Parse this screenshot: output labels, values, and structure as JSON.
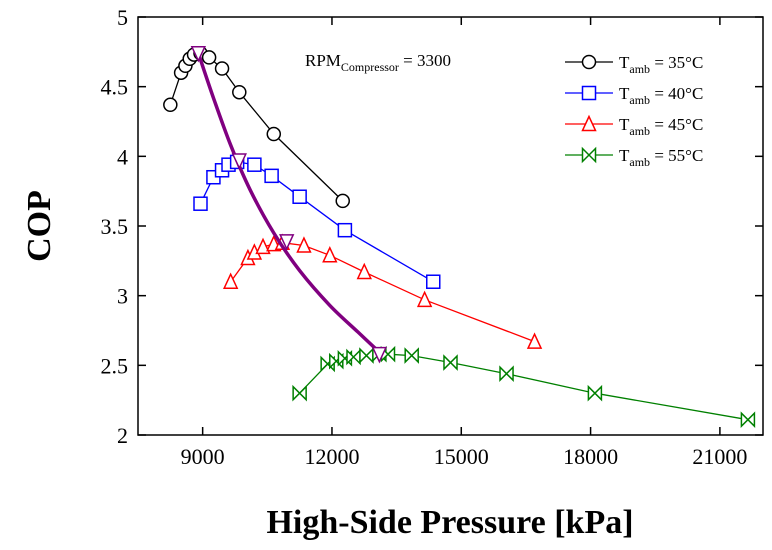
{
  "chart_data": {
    "type": "line",
    "title": "",
    "xlabel": "High-Side Pressure [kPa]",
    "ylabel": "COP",
    "xlim": [
      7500,
      22000
    ],
    "ylim": [
      2,
      5
    ],
    "xticks": [
      9000,
      12000,
      15000,
      18000,
      21000
    ],
    "yticks": [
      2,
      2.5,
      3,
      3.5,
      4,
      4.5,
      5
    ],
    "xtick_labels": [
      "9000",
      "12000",
      "15000",
      "18000",
      "21000"
    ],
    "ytick_labels": [
      "2",
      "2.5",
      "3",
      "3.5",
      "4",
      "4.5",
      "5"
    ],
    "annotation": {
      "base": "RPM",
      "subscript": "Compressor",
      "suffix": " = 3300"
    },
    "legend_placement": "top-right",
    "series": [
      {
        "name": "T_amb = 35°C",
        "label_base": "T",
        "label_sub": "amb",
        "label_suffix": " = 35°C",
        "color": "#000000",
        "marker": "circle",
        "x": [
          8250,
          8500,
          8600,
          8700,
          8800,
          8950,
          9150,
          9450,
          9850,
          10650,
          12250
        ],
        "y": [
          4.37,
          4.6,
          4.65,
          4.7,
          4.73,
          4.74,
          4.71,
          4.63,
          4.46,
          4.16,
          3.68
        ]
      },
      {
        "name": "T_amb = 40°C",
        "label_base": "T",
        "label_sub": "amb",
        "label_suffix": " = 40°C",
        "color": "#0000ff",
        "marker": "square",
        "x": [
          8950,
          9250,
          9450,
          9600,
          9800,
          10200,
          10600,
          11250,
          12300,
          14350
        ],
        "y": [
          3.66,
          3.85,
          3.9,
          3.94,
          3.96,
          3.94,
          3.86,
          3.71,
          3.47,
          3.1
        ]
      },
      {
        "name": "T_amb = 45°C",
        "label_base": "T",
        "label_sub": "amb",
        "label_suffix": " = 45°C",
        "color": "#ff0000",
        "marker": "triangle",
        "x": [
          9650,
          10050,
          10200,
          10400,
          10650,
          10850,
          11350,
          11950,
          12750,
          14150,
          16700
        ],
        "y": [
          3.1,
          3.27,
          3.31,
          3.35,
          3.37,
          3.38,
          3.36,
          3.29,
          3.17,
          2.97,
          2.67
        ]
      },
      {
        "name": "T_amb = 55°C",
        "label_base": "T",
        "label_sub": "amb",
        "label_suffix": " = 55°C",
        "color": "#008000",
        "marker": "bowtie",
        "x": [
          11250,
          11900,
          12100,
          12300,
          12500,
          12800,
          13100,
          13300,
          13850,
          14750,
          16050,
          18100,
          21650
        ],
        "y": [
          2.3,
          2.51,
          2.53,
          2.55,
          2.56,
          2.57,
          2.58,
          2.58,
          2.57,
          2.52,
          2.44,
          2.3,
          2.11
        ]
      }
    ],
    "optimum_curve": {
      "color": "#800080",
      "x": [
        8900,
        9250,
        9650,
        10100,
        10650,
        11250,
        11950,
        12600,
        13150
      ],
      "y": [
        4.74,
        4.42,
        4.08,
        3.76,
        3.45,
        3.18,
        2.93,
        2.74,
        2.58
      ],
      "markers": [
        {
          "marker": "triangle-down",
          "x": 8900,
          "y": 4.74
        },
        {
          "marker": "triangle-down",
          "x": 9850,
          "y": 3.97
        },
        {
          "marker": "triangle-down",
          "x": 10950,
          "y": 3.39
        },
        {
          "marker": "triangle-down",
          "x": 13100,
          "y": 2.58
        }
      ]
    }
  }
}
